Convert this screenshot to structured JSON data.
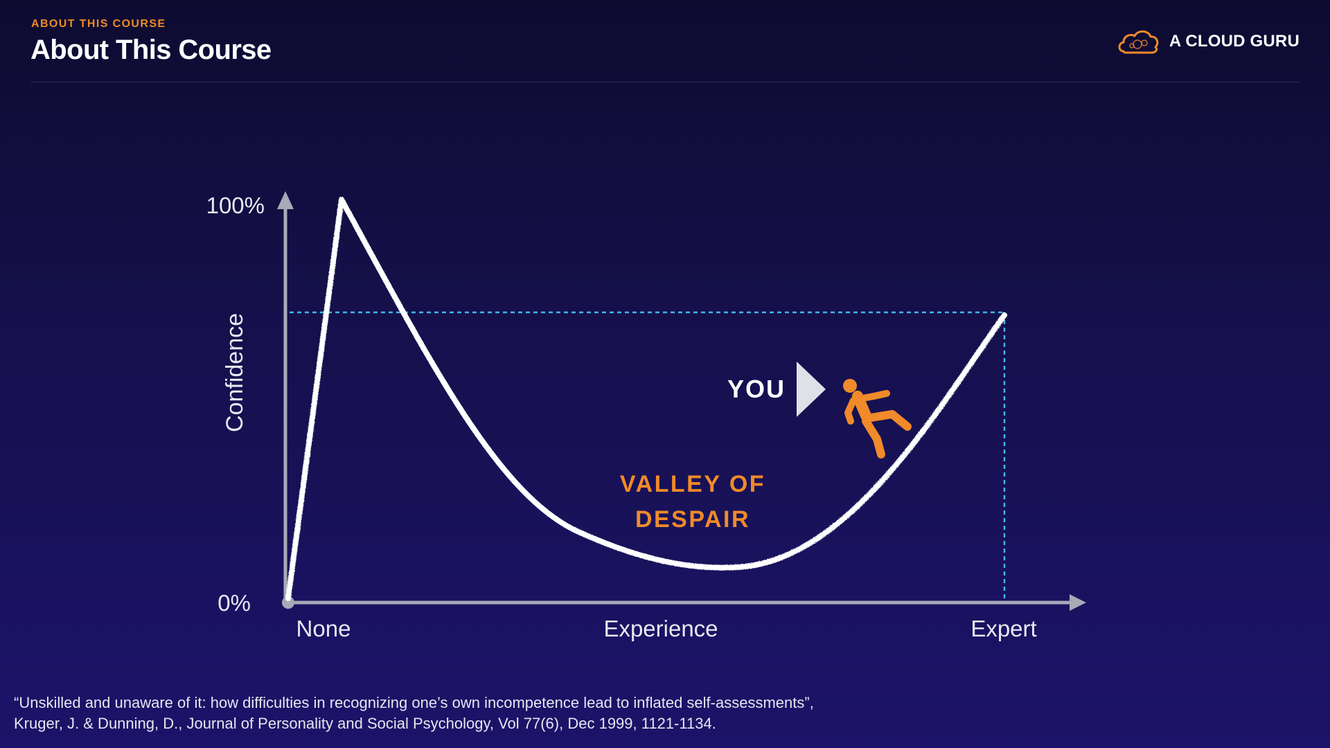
{
  "header": {
    "eyebrow": "ABOUT THIS COURSE",
    "title": "About This Course"
  },
  "brand": {
    "name": "A CLOUD GURU",
    "icon": "cloud-logo-icon",
    "color": "#f08a2a"
  },
  "diagram": {
    "y_axis_label": "Confidence",
    "y_ticks": [
      "100%",
      "0%"
    ],
    "x_ticks": [
      "None",
      "Experience",
      "Expert"
    ],
    "marker_label": "YOU",
    "marker_icon": "falling-person-icon",
    "valley_label_line1": "VALLEY OF",
    "valley_label_line2": "DESPAIR",
    "colors": {
      "curve": "#ffffff",
      "axis": "#a9a9b8",
      "guide": "#3fb8e6",
      "accent": "#f08a2a"
    }
  },
  "citation": {
    "line1": "“Unskilled and unaware of it: how difficulties in recognizing one’s own incompetence lead to inflated self-assessments”,",
    "line2": "Kruger, J. & Dunning, D., Journal of Personality and Social Psychology, Vol 77(6), Dec 1999, 1121-1134."
  }
}
